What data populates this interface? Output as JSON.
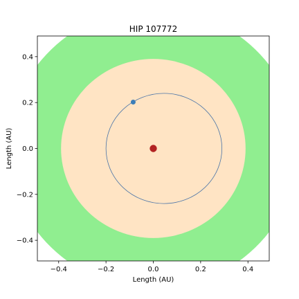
{
  "chart_data": {
    "type": "scatter",
    "title": "HIP 107772",
    "xlabel": "Length (AU)",
    "ylabel": "Length (AU)",
    "xlim": [
      -0.49,
      0.49
    ],
    "ylim": [
      -0.49,
      0.49
    ],
    "x_ticks": [
      -0.4,
      -0.2,
      0.0,
      0.2,
      0.4
    ],
    "y_ticks": [
      -0.4,
      -0.2,
      0.0,
      0.2,
      0.4
    ],
    "x_tick_labels": [
      "−0.4",
      "−0.2",
      "0.0",
      "0.2",
      "0.4"
    ],
    "y_tick_labels": [
      "−0.4",
      "−0.2",
      "0.0",
      "0.2",
      "0.4"
    ],
    "grid": false,
    "zones": [
      {
        "kind": "outer-zone",
        "center": [
          0.0,
          0.0
        ],
        "radius": 0.61,
        "color": "#90ee90"
      },
      {
        "kind": "inner-zone",
        "center": [
          0.0,
          0.0
        ],
        "radius": 0.39,
        "color": "#ffe4c4"
      }
    ],
    "orbit": {
      "center": [
        0.045,
        0.0
      ],
      "rx": 0.245,
      "ry": 0.24,
      "color": "#4a74a8"
    },
    "star": {
      "x": 0.0,
      "y": 0.0,
      "color": "#b22222"
    },
    "planet": {
      "x": -0.085,
      "y": 0.202,
      "color": "#3c7eb8"
    }
  }
}
